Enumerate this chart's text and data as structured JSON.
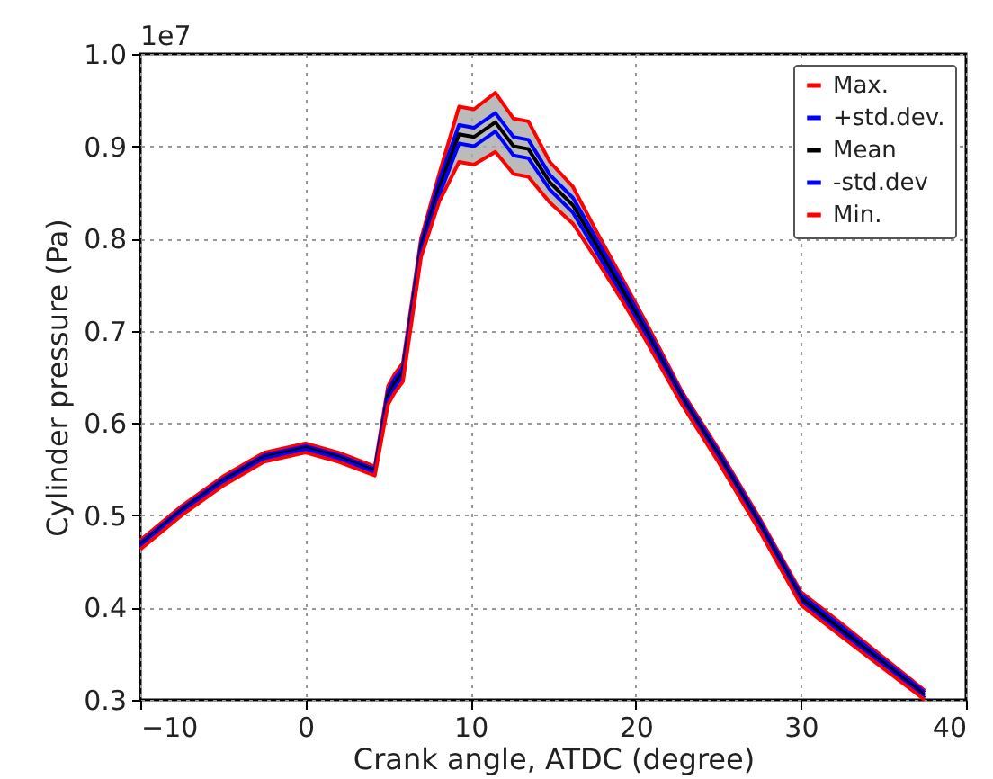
{
  "chart_data": {
    "type": "line",
    "xlabel": "Crank angle, ATDC (degree)",
    "ylabel": "Cylinder pressure (Pa)",
    "annotations": [
      "1e7"
    ],
    "x": [
      -10,
      -7.5,
      -5,
      -2.5,
      0,
      2,
      4.2,
      5,
      5.4,
      5.9,
      7,
      8.1,
      9.3,
      10.2,
      11.5,
      12.6,
      13.5,
      14.8,
      16.2,
      17.7,
      19.2,
      20.6,
      22.8,
      25,
      27.5,
      30,
      32.5,
      35,
      37.5
    ],
    "xlim": [
      -10,
      40
    ],
    "xticks": [
      -10,
      0,
      10,
      20,
      30,
      40
    ],
    "ylim": [
      0.3,
      1.0
    ],
    "yticks": [
      0.3,
      0.4,
      0.5,
      0.6,
      0.7,
      0.8,
      0.9,
      {
        "value": 1.0,
        "label": "1.0"
      }
    ],
    "grid": true,
    "legend": "top right",
    "line_style": "solid",
    "marker": "none",
    "series": [
      {
        "name": "Max.",
        "color": "#ff0000",
        "values": [
          0.473,
          0.51,
          0.542,
          0.568,
          0.578,
          0.568,
          0.553,
          0.64,
          0.653,
          0.665,
          0.8,
          0.87,
          0.943,
          0.94,
          0.958,
          0.93,
          0.927,
          0.883,
          0.856,
          0.805,
          0.756,
          0.71,
          0.634,
          0.572,
          0.497,
          0.417,
          0.382,
          0.346,
          0.31
        ]
      },
      {
        "name": "+std.dev.",
        "color": "#0000ff",
        "values": [
          0.47,
          0.507,
          0.539,
          0.565,
          0.575,
          0.565,
          0.55,
          0.635,
          0.648,
          0.66,
          0.795,
          0.863,
          0.923,
          0.92,
          0.936,
          0.91,
          0.907,
          0.869,
          0.844,
          0.797,
          0.751,
          0.705,
          0.631,
          0.569,
          0.494,
          0.414,
          0.379,
          0.343,
          0.308
        ]
      },
      {
        "name": "Mean",
        "color": "#000000",
        "values": [
          0.468,
          0.505,
          0.537,
          0.563,
          0.573,
          0.563,
          0.548,
          0.63,
          0.643,
          0.655,
          0.79,
          0.855,
          0.913,
          0.91,
          0.926,
          0.9,
          0.897,
          0.861,
          0.836,
          0.79,
          0.744,
          0.7,
          0.627,
          0.565,
          0.49,
          0.41,
          0.375,
          0.34,
          0.305
        ],
        "lower": [
          0.463,
          0.5,
          0.532,
          0.558,
          0.568,
          0.558,
          0.543,
          0.62,
          0.633,
          0.645,
          0.78,
          0.84,
          0.883,
          0.88,
          0.894,
          0.87,
          0.867,
          0.839,
          0.816,
          0.775,
          0.732,
          0.69,
          0.62,
          0.558,
          0.483,
          0.403,
          0.368,
          0.334,
          0.3
        ],
        "upper": [
          0.473,
          0.51,
          0.542,
          0.568,
          0.578,
          0.568,
          0.553,
          0.64,
          0.653,
          0.665,
          0.8,
          0.87,
          0.943,
          0.94,
          0.958,
          0.93,
          0.927,
          0.883,
          0.856,
          0.805,
          0.756,
          0.71,
          0.634,
          0.572,
          0.497,
          0.417,
          0.382,
          0.346,
          0.31
        ]
      },
      {
        "name": "-std.dev",
        "color": "#0000ff",
        "values": [
          0.466,
          0.503,
          0.535,
          0.561,
          0.571,
          0.561,
          0.546,
          0.625,
          0.638,
          0.65,
          0.785,
          0.847,
          0.903,
          0.9,
          0.916,
          0.89,
          0.887,
          0.853,
          0.828,
          0.783,
          0.737,
          0.695,
          0.623,
          0.561,
          0.486,
          0.406,
          0.371,
          0.337,
          0.302
        ]
      },
      {
        "name": "Min.",
        "color": "#ff0000",
        "values": [
          0.463,
          0.5,
          0.532,
          0.558,
          0.568,
          0.558,
          0.543,
          0.62,
          0.633,
          0.645,
          0.78,
          0.84,
          0.883,
          0.88,
          0.894,
          0.87,
          0.867,
          0.839,
          0.816,
          0.775,
          0.732,
          0.69,
          0.62,
          0.558,
          0.483,
          0.403,
          0.368,
          0.334,
          0.3
        ]
      }
    ]
  }
}
